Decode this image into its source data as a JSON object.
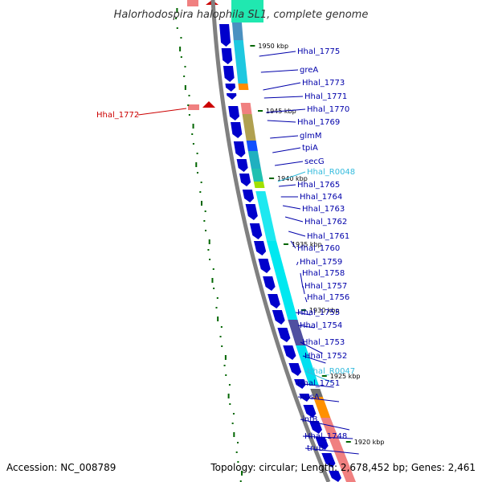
{
  "title": "Halorhodospira halophila SL1, complete genome",
  "accession": "Accession: NC_008789",
  "summary": "Topology: circular; Length: 2,678,452 bp; Genes: 2,461",
  "colors": {
    "backbone": "#808080",
    "forward_cds": "#0000cc",
    "rna_label": "#33bbdd",
    "gene_label": "#0000aa",
    "reverse_label": "#cc0000",
    "gc_skew": "#006600"
  },
  "ticks": [
    "1950 kbp",
    "1945 kbp",
    "1940 kbp",
    "1935 kbp",
    "1930 kbp",
    "1925 kbp",
    "1920 kbp"
  ],
  "gene_labels": [
    {
      "text": "Hhal_1775",
      "kind": "cds"
    },
    {
      "text": "greA",
      "kind": "cds"
    },
    {
      "text": "Hhal_1773",
      "kind": "cds"
    },
    {
      "text": "Hhal_1771",
      "kind": "cds"
    },
    {
      "text": "Hhal_1770",
      "kind": "cds"
    },
    {
      "text": "Hhal_1769",
      "kind": "cds"
    },
    {
      "text": "glmM",
      "kind": "cds"
    },
    {
      "text": "tpiA",
      "kind": "cds"
    },
    {
      "text": "secG",
      "kind": "cds"
    },
    {
      "text": "Hhal_R0048",
      "kind": "rna"
    },
    {
      "text": "Hhal_1765",
      "kind": "cds"
    },
    {
      "text": "Hhal_1764",
      "kind": "cds"
    },
    {
      "text": "Hhal_1763",
      "kind": "cds"
    },
    {
      "text": "Hhal_1762",
      "kind": "cds"
    },
    {
      "text": "Hhal_1761",
      "kind": "cds"
    },
    {
      "text": "Hhal_1760",
      "kind": "cds"
    },
    {
      "text": "Hhal_1759",
      "kind": "cds"
    },
    {
      "text": "Hhal_1758",
      "kind": "cds"
    },
    {
      "text": "Hhal_1757",
      "kind": "cds"
    },
    {
      "text": "Hhal_1756",
      "kind": "cds"
    },
    {
      "text": "Hhal_1755",
      "kind": "cds"
    },
    {
      "text": "Hhal_1754",
      "kind": "cds"
    },
    {
      "text": "Hhal_1753",
      "kind": "cds"
    },
    {
      "text": "Hhal_1752",
      "kind": "cds"
    },
    {
      "text": "Hhal_R0047",
      "kind": "rna"
    },
    {
      "text": "Hhal_1751",
      "kind": "cds"
    },
    {
      "text": "nusA",
      "kind": "cds"
    },
    {
      "text": "infB",
      "kind": "cds"
    },
    {
      "text": "Hhal_1748",
      "kind": "cds"
    },
    {
      "text": "truB",
      "kind": "cds"
    }
  ],
  "left_labels": [
    {
      "text": "Hhal_1772",
      "kind": "reverse"
    }
  ]
}
